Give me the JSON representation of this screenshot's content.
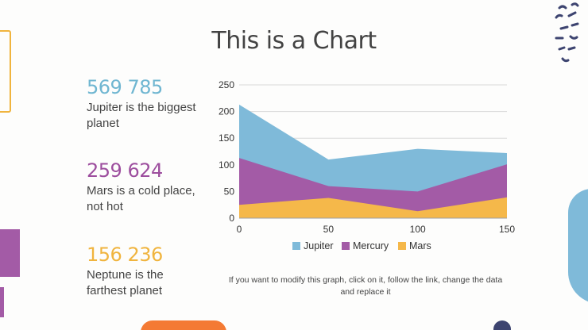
{
  "title": "This is a Chart",
  "stats": [
    {
      "value": "569 785",
      "text": "Jupiter is the biggest planet",
      "color": "#6fb6d1"
    },
    {
      "value": "259 624",
      "text": "Mars is a cold place, not hot",
      "color": "#9d4e9e"
    },
    {
      "value": "156 236",
      "text": "Neptune is the farthest planet",
      "color": "#f0b43e"
    }
  ],
  "note": "If you want to modify this graph, click on it, follow the link, change the data and replace it",
  "colors": {
    "jupiter": "#7fbad9",
    "mercury": "#a35ba6",
    "mars": "#f5b84a",
    "orange": "#f47a34",
    "navy": "#3d4470"
  },
  "chart_data": {
    "type": "area",
    "x": [
      0,
      50,
      100,
      150
    ],
    "series": [
      {
        "name": "Jupiter",
        "values": [
          213,
          110,
          130,
          122
        ],
        "color": "#7fbad9"
      },
      {
        "name": "Mercury",
        "values": [
          113,
          60,
          50,
          101
        ],
        "color": "#a35ba6"
      },
      {
        "name": "Mars",
        "values": [
          25,
          38,
          13,
          39
        ],
        "color": "#f5b84a"
      }
    ],
    "xlim": [
      0,
      150
    ],
    "ylim": [
      0,
      250
    ],
    "yticks": [
      "0",
      "50",
      "100",
      "150",
      "200",
      "250"
    ],
    "xticks": [
      "0",
      "50",
      "100",
      "150"
    ],
    "grid": true,
    "legend": "bottom"
  }
}
